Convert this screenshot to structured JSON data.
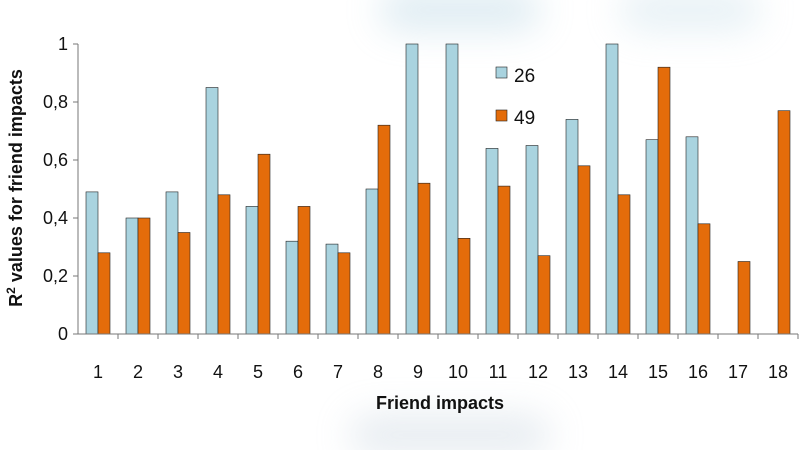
{
  "colors": {
    "series_26": "#a9d3df",
    "series_49": "#e46c0a",
    "bar_stroke": "#222222",
    "axis": "#777777"
  },
  "chart_data": {
    "type": "bar",
    "title": "",
    "xlabel": "Friend impacts",
    "ylabel": "R² values for friend impacts",
    "ylabel_base": "R",
    "ylabel_sup": "2",
    "ylabel_rest": " values for friend impacts",
    "ylim": [
      0,
      1
    ],
    "yticks": [
      "0",
      "0,2",
      "0,4",
      "0,6",
      "0,8",
      "1"
    ],
    "ytick_values": [
      0,
      0.2,
      0.4,
      0.6,
      0.8,
      1
    ],
    "categories": [
      "1",
      "2",
      "3",
      "4",
      "5",
      "6",
      "7",
      "8",
      "9",
      "10",
      "11",
      "12",
      "13",
      "14",
      "15",
      "16",
      "17",
      "18"
    ],
    "series": [
      {
        "name": "26",
        "values": [
          0.49,
          0.4,
          0.49,
          0.85,
          0.44,
          0.32,
          0.31,
          0.5,
          1.0,
          1.0,
          0.64,
          0.65,
          0.74,
          1.0,
          0.67,
          0.68,
          null,
          null
        ]
      },
      {
        "name": "49",
        "values": [
          0.28,
          0.4,
          0.35,
          0.48,
          0.62,
          0.44,
          0.28,
          0.72,
          0.52,
          0.33,
          0.51,
          0.27,
          0.58,
          0.48,
          0.92,
          0.38,
          0.25,
          0.77
        ]
      }
    ],
    "legend_position": "top-right",
    "grid": false
  }
}
